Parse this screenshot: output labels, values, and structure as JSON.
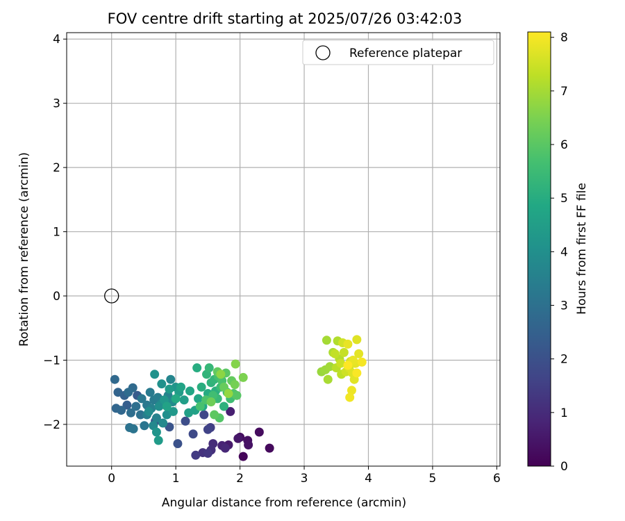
{
  "chart_data": {
    "type": "scatter",
    "title": "FOV centre drift starting at 2025/07/26 03:42:03",
    "xlabel": "Angular distance from reference (arcmin)",
    "ylabel": "Rotation from reference (arcmin)",
    "xlim": [
      -0.7,
      6.05
    ],
    "ylim": [
      -2.65,
      4.1
    ],
    "x_ticks": [
      "0",
      "1",
      "2",
      "3",
      "4",
      "5",
      "6"
    ],
    "y_ticks": [
      "−2",
      "−1",
      "0",
      "1",
      "2",
      "3",
      "4"
    ],
    "grid": true,
    "legend": {
      "placement": "top-right",
      "entries": [
        "Reference platepar"
      ]
    },
    "colorbar": {
      "label": "Hours from first FF file",
      "range": [
        0,
        8.1
      ],
      "ticks": [
        "0",
        "1",
        "2",
        "3",
        "4",
        "5",
        "6",
        "7",
        "8"
      ],
      "colormap": "viridis"
    },
    "reference_point": {
      "x": 0,
      "y": 0
    },
    "series": [
      {
        "fields": [
          "x",
          "y",
          "hours"
        ],
        "points": [
          [
            2.05,
            -2.5,
            0.1
          ],
          [
            2.46,
            -2.37,
            0.2
          ],
          [
            2.3,
            -2.12,
            0.25
          ],
          [
            2.0,
            -2.2,
            0.3
          ],
          [
            2.12,
            -2.25,
            0.35
          ],
          [
            2.13,
            -2.32,
            0.4
          ],
          [
            1.97,
            -2.22,
            0.5
          ],
          [
            1.82,
            -2.32,
            0.6
          ],
          [
            1.85,
            -1.8,
            0.7
          ],
          [
            1.72,
            -2.33,
            0.8
          ],
          [
            1.77,
            -2.37,
            0.9
          ],
          [
            1.58,
            -2.3,
            1.0
          ],
          [
            1.55,
            -2.4,
            1.1
          ],
          [
            1.42,
            -2.44,
            1.2
          ],
          [
            1.5,
            -2.45,
            1.3
          ],
          [
            1.31,
            -2.48,
            1.4
          ],
          [
            1.54,
            -2.05,
            1.5
          ],
          [
            1.5,
            -2.08,
            1.6
          ],
          [
            1.44,
            -1.85,
            1.7
          ],
          [
            1.27,
            -2.15,
            1.8
          ],
          [
            1.15,
            -1.95,
            1.9
          ],
          [
            1.03,
            -2.3,
            2.0
          ],
          [
            0.9,
            -2.04,
            2.1
          ],
          [
            0.68,
            -1.95,
            2.2
          ],
          [
            0.4,
            -1.55,
            2.3
          ],
          [
            0.24,
            -1.7,
            2.4
          ],
          [
            0.2,
            -1.55,
            2.5
          ],
          [
            0.1,
            -1.5,
            2.6
          ],
          [
            0.07,
            -1.75,
            2.65
          ],
          [
            0.15,
            -1.78,
            2.7
          ],
          [
            0.05,
            -1.3,
            2.75
          ],
          [
            0.33,
            -1.43,
            2.8
          ],
          [
            0.26,
            -1.5,
            2.85
          ],
          [
            0.3,
            -1.82,
            2.9
          ],
          [
            0.38,
            -1.72,
            2.95
          ],
          [
            0.45,
            -1.85,
            3.0
          ],
          [
            0.28,
            -2.05,
            3.05
          ],
          [
            0.34,
            -2.07,
            3.1
          ],
          [
            0.51,
            -2.02,
            3.15
          ],
          [
            0.47,
            -1.6,
            3.2
          ],
          [
            0.55,
            -1.7,
            3.25
          ],
          [
            0.6,
            -1.5,
            3.3
          ],
          [
            0.66,
            -1.62,
            3.35
          ],
          [
            0.72,
            -1.58,
            3.4
          ],
          [
            0.55,
            -1.85,
            3.45
          ],
          [
            0.62,
            -1.75,
            3.5
          ],
          [
            0.7,
            -1.9,
            3.55
          ],
          [
            0.88,
            -1.55,
            3.6
          ],
          [
            0.92,
            -1.3,
            3.65
          ],
          [
            0.77,
            -1.68,
            3.7
          ],
          [
            0.65,
            -2.02,
            3.75
          ],
          [
            0.8,
            -1.98,
            3.8
          ],
          [
            0.95,
            -1.65,
            3.85
          ],
          [
            0.58,
            -1.8,
            3.9
          ],
          [
            0.74,
            -1.72,
            3.95
          ],
          [
            0.86,
            -1.85,
            4.0
          ],
          [
            0.78,
            -1.37,
            4.05
          ],
          [
            0.67,
            -1.22,
            4.1
          ],
          [
            1.0,
            -1.42,
            4.15
          ],
          [
            0.7,
            -2.12,
            4.2
          ],
          [
            0.82,
            -1.62,
            4.25
          ],
          [
            0.96,
            -1.8,
            4.3
          ],
          [
            0.9,
            -1.45,
            4.35
          ],
          [
            0.73,
            -2.25,
            4.4
          ],
          [
            1.05,
            -1.5,
            4.45
          ],
          [
            1.13,
            -1.62,
            4.5
          ],
          [
            1.2,
            -1.82,
            4.55
          ],
          [
            1.3,
            -1.78,
            4.6
          ],
          [
            0.86,
            -1.72,
            4.65
          ],
          [
            1.08,
            -1.42,
            4.7
          ],
          [
            1.22,
            -1.48,
            4.75
          ],
          [
            1.35,
            -1.6,
            4.8
          ],
          [
            1.42,
            -1.72,
            4.85
          ],
          [
            1.0,
            -1.6,
            4.9
          ],
          [
            1.5,
            -1.52,
            4.95
          ],
          [
            1.33,
            -1.12,
            5.0
          ],
          [
            1.4,
            -1.42,
            5.05
          ],
          [
            1.62,
            -1.48,
            5.1
          ],
          [
            1.75,
            -1.72,
            5.15
          ],
          [
            1.55,
            -1.35,
            5.2
          ],
          [
            1.48,
            -1.22,
            5.25
          ],
          [
            1.6,
            -1.3,
            5.3
          ],
          [
            1.52,
            -1.12,
            5.35
          ],
          [
            1.65,
            -1.6,
            5.4
          ],
          [
            1.8,
            -1.5,
            5.45
          ],
          [
            1.7,
            -1.42,
            5.5
          ],
          [
            1.85,
            -1.6,
            5.55
          ],
          [
            1.58,
            -1.55,
            5.6
          ],
          [
            1.66,
            -1.25,
            5.65
          ],
          [
            1.38,
            -1.72,
            5.7
          ],
          [
            1.72,
            -1.32,
            5.75
          ],
          [
            1.47,
            -1.62,
            5.8
          ],
          [
            1.9,
            -1.52,
            5.85
          ],
          [
            1.68,
            -1.9,
            5.9
          ],
          [
            1.95,
            -1.55,
            5.95
          ],
          [
            1.78,
            -1.2,
            6.0
          ],
          [
            1.6,
            -1.85,
            6.05
          ],
          [
            1.65,
            -1.18,
            6.1
          ],
          [
            1.87,
            -1.32,
            6.15
          ],
          [
            1.75,
            -1.42,
            6.2
          ],
          [
            1.55,
            -1.65,
            6.3
          ],
          [
            1.92,
            -1.38,
            6.4
          ],
          [
            2.05,
            -1.27,
            6.5
          ],
          [
            1.93,
            -1.06,
            6.6
          ],
          [
            1.7,
            -1.22,
            6.7
          ],
          [
            1.82,
            -1.52,
            6.8
          ],
          [
            3.27,
            -1.18,
            6.85
          ],
          [
            3.33,
            -1.15,
            6.9
          ],
          [
            3.4,
            -1.1,
            6.95
          ],
          [
            3.35,
            -0.69,
            7.0
          ],
          [
            3.37,
            -1.3,
            7.05
          ],
          [
            3.45,
            -0.88,
            7.1
          ],
          [
            3.52,
            -0.7,
            7.15
          ],
          [
            3.55,
            -0.98,
            7.2
          ],
          [
            3.5,
            -1.12,
            7.25
          ],
          [
            3.58,
            -1.22,
            7.3
          ],
          [
            3.48,
            -0.9,
            7.35
          ],
          [
            3.62,
            -0.88,
            7.4
          ],
          [
            3.57,
            -1.05,
            7.45
          ],
          [
            3.65,
            -1.18,
            7.5
          ],
          [
            3.6,
            -0.73,
            7.55
          ],
          [
            3.72,
            -1.02,
            7.6
          ],
          [
            3.7,
            -1.12,
            7.65
          ],
          [
            3.75,
            -1.2,
            7.7
          ],
          [
            3.82,
            -0.68,
            7.72
          ],
          [
            3.78,
            -1.3,
            7.75
          ],
          [
            3.85,
            -0.9,
            7.78
          ],
          [
            3.8,
            -1.05,
            7.8
          ],
          [
            3.68,
            -0.75,
            7.83
          ],
          [
            3.76,
            -1.0,
            7.85
          ],
          [
            3.74,
            -1.47,
            7.9
          ],
          [
            3.71,
            -1.58,
            7.95
          ],
          [
            3.9,
            -1.03,
            8.0
          ],
          [
            3.82,
            -1.2,
            8.05
          ],
          [
            3.68,
            -1.08,
            8.1
          ]
        ]
      }
    ]
  },
  "colors": {
    "axis": "#000000",
    "grid": "#b0b0b0",
    "legend_border": "#cccccc"
  }
}
